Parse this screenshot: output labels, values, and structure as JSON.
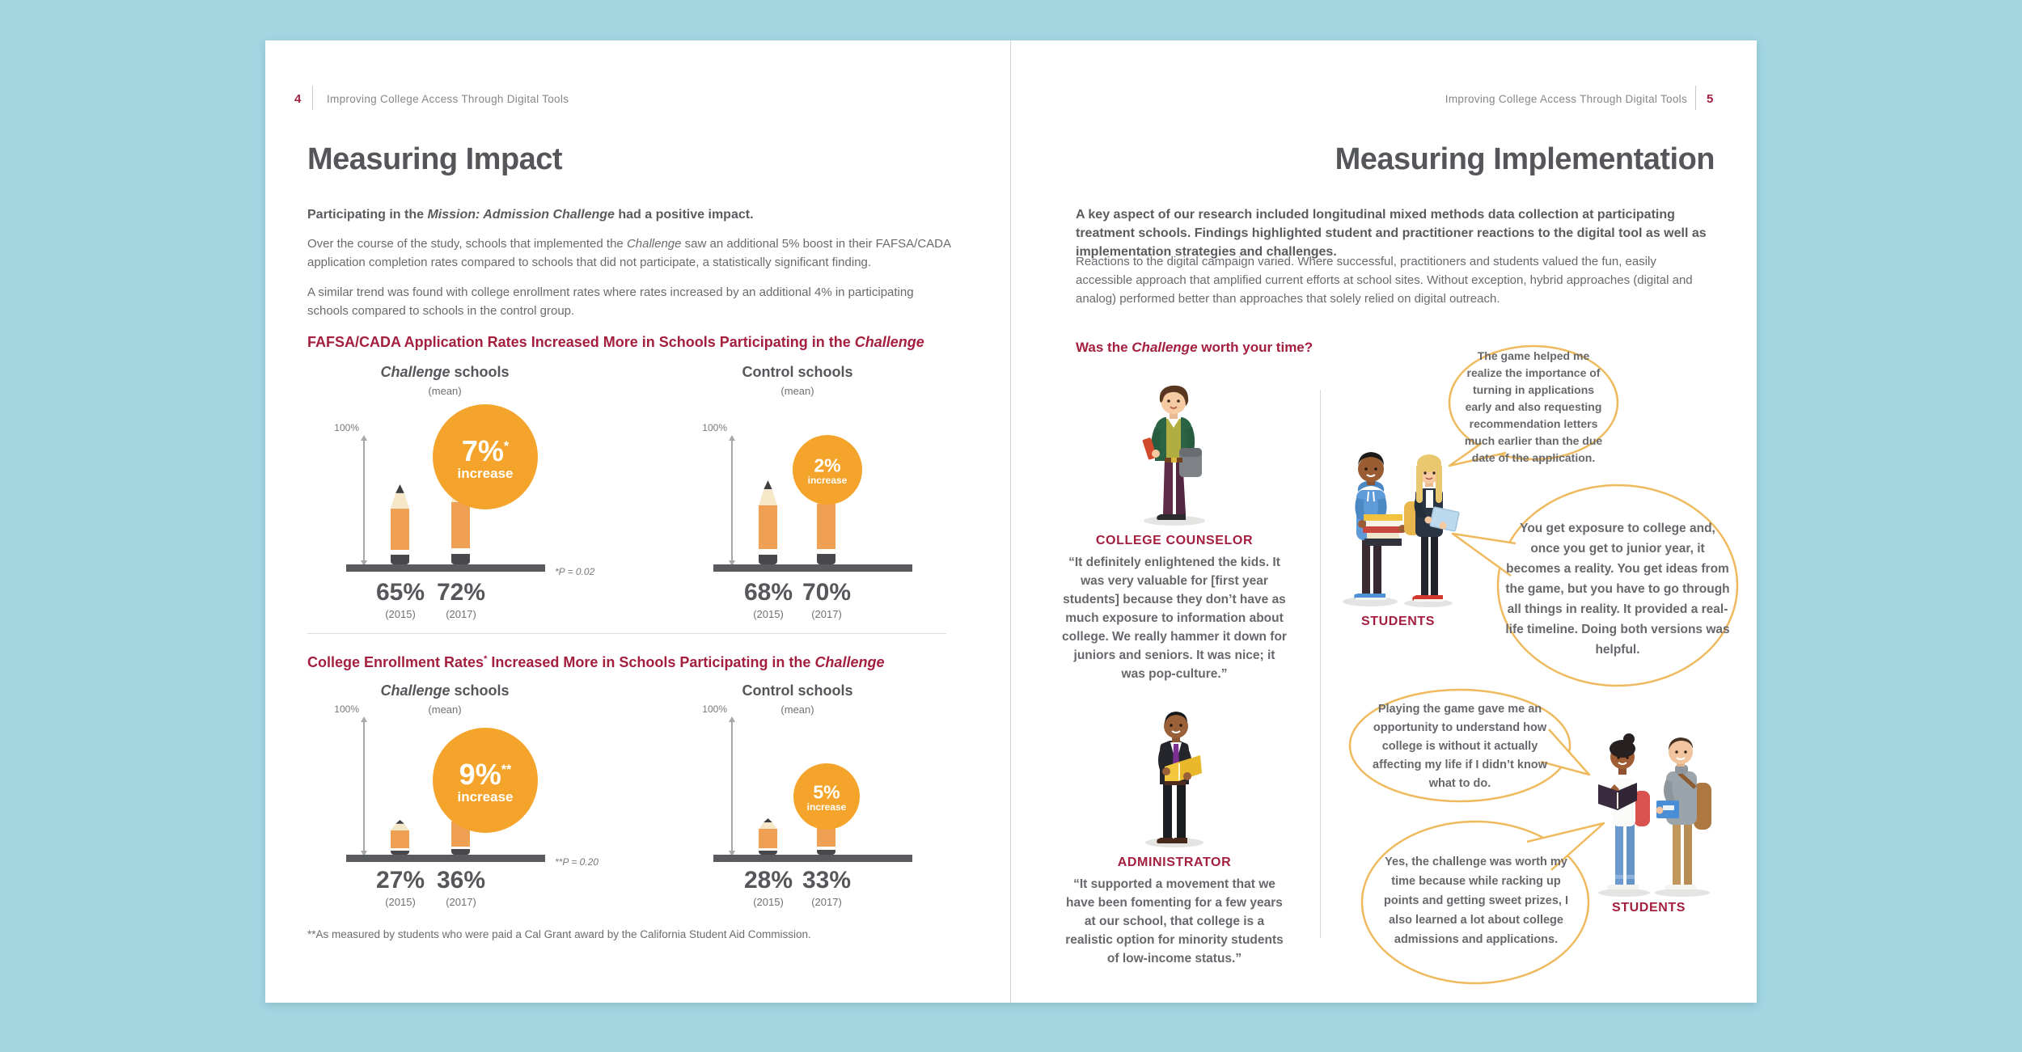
{
  "colors": {
    "background": "#a2d7e2",
    "accent_red": "#a41e3e",
    "title_gray": "#55565a",
    "body_gray": "#686a6e",
    "badge_orange": "#f5a42b",
    "pencil_orange": "#f0a052",
    "bubble_outline": "#efba5e"
  },
  "doc": {
    "left": {
      "page_number": "4",
      "running_header": "Improving College Access Through Digital Tools",
      "title": "Measuring Impact",
      "intro": {
        "pre": "Participating in the ",
        "italic": "Mission: Admission Challenge",
        "post": " had a positive impact."
      },
      "p1": {
        "pre": "Over the course of the study, schools that implemented the ",
        "italic": "Challenge",
        "post": " saw an additional 5% boost in their FAFSA/CADA application completion rates compared to schools that did not participate, a statistically significant finding."
      },
      "p2": "A similar trend was found with college enrollment rates where rates increased by an additional 4% in participating schools compared to schools in the control group.",
      "footnote": "**As measured by students who were paid a Cal Grant award by the California Student Aid Commission."
    },
    "right": {
      "page_number": "5",
      "running_header": "Improving College Access Through Digital Tools",
      "title": "Measuring Implementation",
      "intro_bold": "A key aspect of our research included longitudinal mixed methods data collection at participating treatment schools. Findings highlighted student and practitioner reactions to the digital tool as well as implementation strategies and challenges.",
      "p1": "Reactions to the digital campaign varied. Where successful, practitioners and students valued the fun, easily accessible approach that amplified current efforts at school sites. Without exception, hybrid approaches (digital and analog) performed better than approaches that solely relied on digital outreach.",
      "question": {
        "pre": "Was the ",
        "italic": "Challenge",
        "post": " worth your time?"
      },
      "counselor": {
        "label": "COLLEGE COUNSELOR",
        "quote": "“It definitely enlightened the kids. It was very valuable for [first year students] because they don’t have as much exposure to information about college. We really hammer it down for juniors and seniors. It was nice; it was pop-culture.”"
      },
      "administrator": {
        "label": "ADMINISTRATOR",
        "quote": "“It supported a movement that we have been fomenting for a few years at our school, that college is a realistic option for minority students of low-income status.”"
      },
      "students_top_label": "STUDENTS",
      "students_bottom_label": "STUDENTS",
      "bubbles": [
        "The game helped me realize the importance of turning in applications early and also requesting recommendation letters much earlier than the due date of the application.",
        "You get exposure to college and, once you get to junior year, it becomes a reality. You get ideas from the game, but you have to go through all things in reality. It provided a real-life timeline. Doing both versions was helpful.",
        "Playing the game gave me an opportunity to understand how college is without it actually affecting my life if I didn’t know what to do.",
        "Yes, the challenge was worth my time because while racking up points and getting sweet prizes, I also learned a lot about college admissions and applications."
      ]
    }
  },
  "chart_data": [
    {
      "type": "bar",
      "variant": "pencil-pictogram",
      "title": {
        "t1": "FAFSA/CADA Application Rates Increased More in Schools Participating in the ",
        "sup": "",
        "t2": "",
        "italic": "Challenge"
      },
      "ylabel": "",
      "xlabel": "",
      "ylim": [
        0,
        100
      ],
      "grid": false,
      "groups": [
        {
          "label": {
            "italic": "Challenge",
            "rest": " schools"
          },
          "sublabel": "(mean)",
          "axis_label": "100%",
          "categories": [
            "(2015)",
            "(2017)"
          ],
          "values": [
            65,
            72
          ],
          "value_labels": [
            "65%",
            "72%"
          ],
          "badge": {
            "value": "7%",
            "sup": "*",
            "word": "increase"
          },
          "note": "*P = 0.02"
        },
        {
          "label": {
            "italic": "",
            "rest": "Control schools"
          },
          "sublabel": "(mean)",
          "axis_label": "100%",
          "categories": [
            "(2015)",
            "(2017)"
          ],
          "values": [
            68,
            70
          ],
          "value_labels": [
            "68%",
            "70%"
          ],
          "badge": {
            "value": "2%",
            "sup": "",
            "word": "increase"
          },
          "note": ""
        }
      ]
    },
    {
      "type": "bar",
      "variant": "pencil-pictogram",
      "title": {
        "t1": "College Enrollment Rates",
        "sup": "*",
        "t2": " Increased More in Schools Participating in the ",
        "italic": "Challenge"
      },
      "ylabel": "",
      "xlabel": "",
      "ylim": [
        0,
        100
      ],
      "grid": false,
      "groups": [
        {
          "label": {
            "italic": "Challenge",
            "rest": " schools"
          },
          "sublabel": "(mean)",
          "axis_label": "100%",
          "categories": [
            "(2015)",
            "(2017)"
          ],
          "values": [
            27,
            36
          ],
          "value_labels": [
            "27%",
            "36%"
          ],
          "badge": {
            "value": "9%",
            "sup": "**",
            "word": "increase"
          },
          "note": "**P = 0.20"
        },
        {
          "label": {
            "italic": "",
            "rest": "Control schools"
          },
          "sublabel": "(mean)",
          "axis_label": "100%",
          "categories": [
            "(2015)",
            "(2017)"
          ],
          "values": [
            28,
            33
          ],
          "value_labels": [
            "28%",
            "33%"
          ],
          "badge": {
            "value": "5%",
            "sup": "",
            "word": "increase"
          },
          "note": ""
        }
      ]
    }
  ]
}
